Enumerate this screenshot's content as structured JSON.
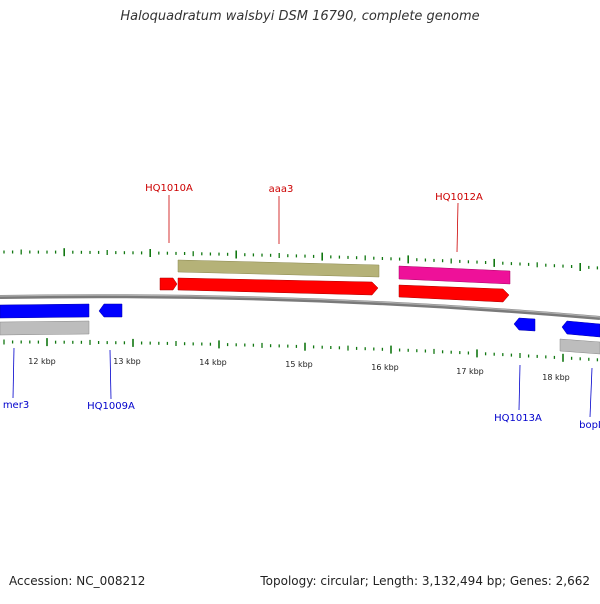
{
  "title": "Haloquadratum walsbyi DSM 16790, complete genome",
  "footer": {
    "accession": "Accession: NC_008212",
    "summary": "Topology: circular; Length: 3,132,494 bp; Genes: 2,662"
  },
  "colors": {
    "forward_gene": "#ff0000",
    "reverse_gene": "#0000ff",
    "forward_label": "#cc0000",
    "reverse_label": "#0000cc",
    "khaki_feature": "#b5b278",
    "pink_feature": "#ee1199",
    "gray_feature": "#bdbdbd",
    "backbone": "#888888",
    "gc_ticks": "#117711"
  },
  "scale_labels": [
    "12 kbp",
    "13 kbp",
    "14 kbp",
    "15 kbp",
    "16 kbp",
    "17 kbp",
    "18 kbp"
  ],
  "forward_labels": [
    "HQ1010A",
    "aaa3",
    "HQ1012A"
  ],
  "reverse_labels": [
    "mer3",
    "HQ1009A",
    "HQ1013A",
    "bopI"
  ]
}
